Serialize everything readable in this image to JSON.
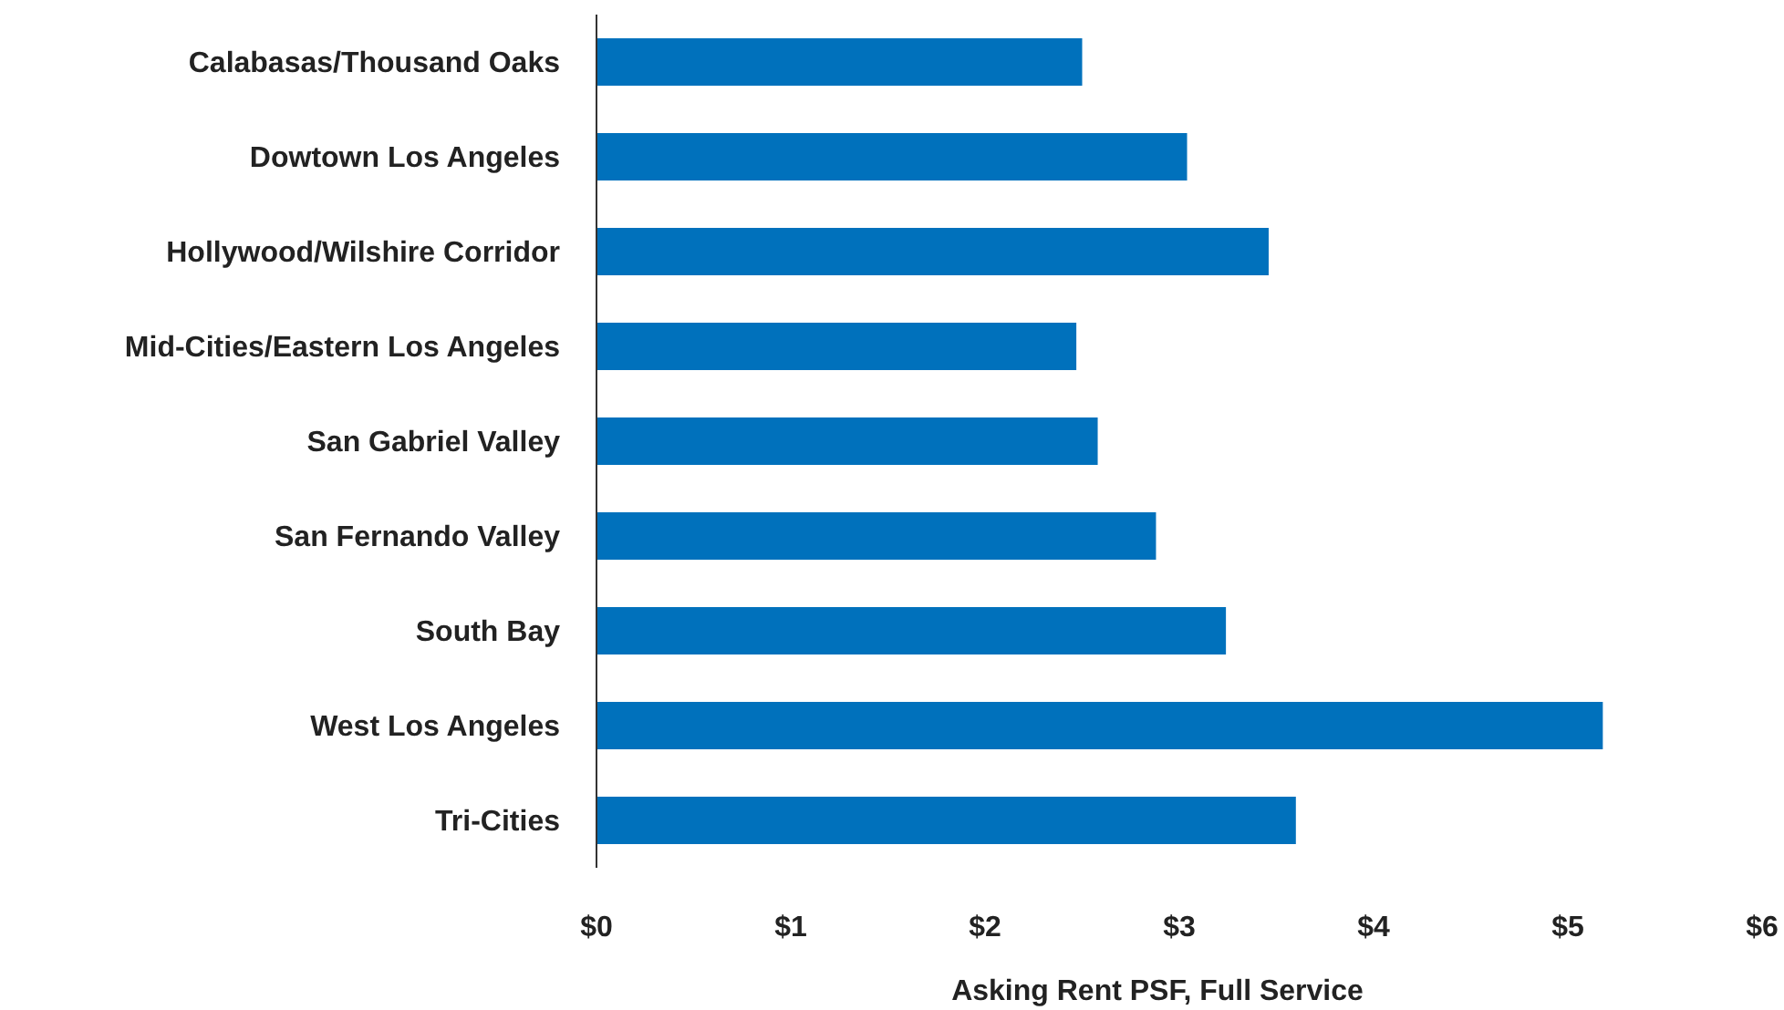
{
  "chart_data": {
    "type": "bar",
    "orientation": "horizontal",
    "xlabel": "Asking Rent PSF, Full Service",
    "categories": [
      "Calabasas/Thousand Oaks",
      "Dowtown Los Angeles",
      "Hollywood/Wilshire Corridor",
      "Mid-Cities/Eastern Los Angeles",
      "San Gabriel Valley",
      "San Fernando Valley",
      "South Bay",
      "West Los Angeles",
      "Tri-Cities"
    ],
    "values": [
      2.5,
      3.04,
      3.46,
      2.47,
      2.58,
      2.88,
      3.24,
      5.18,
      3.6
    ],
    "color": "#0071bc",
    "xlim": [
      0,
      6
    ],
    "xticks": [
      {
        "value": 0,
        "label": "$0"
      },
      {
        "value": 1,
        "label": "$1"
      },
      {
        "value": 2,
        "label": "$2"
      },
      {
        "value": 3,
        "label": "$3"
      },
      {
        "value": 4,
        "label": "$4"
      },
      {
        "value": 5,
        "label": "$5"
      },
      {
        "value": 6,
        "label": "$6"
      }
    ],
    "grid": false
  }
}
